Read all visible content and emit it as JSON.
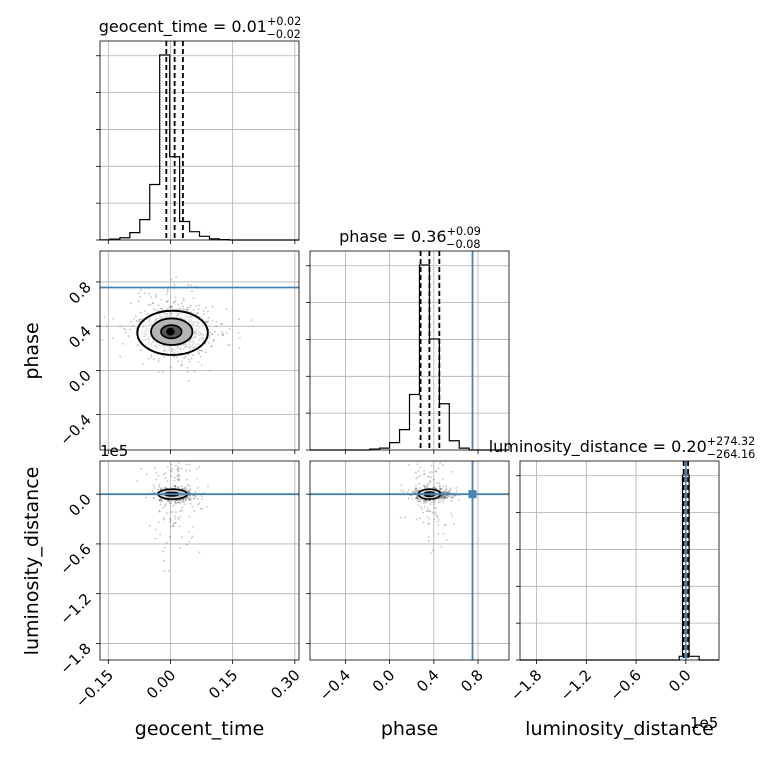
{
  "chart_data": {
    "type": "corner",
    "parameters": [
      "geocent_time",
      "phase",
      "luminosity_distance"
    ],
    "titles": [
      {
        "param": "geocent_time",
        "median": "0.01",
        "plus": "+0.02",
        "minus": "−0.02"
      },
      {
        "param": "phase",
        "median": "0.36",
        "plus": "+0.09",
        "minus": "−0.08"
      },
      {
        "param": "luminosity_distance",
        "median": "0.20",
        "plus": "+274.32",
        "minus": "−264.16"
      }
    ],
    "axis_labels": {
      "x": [
        "geocent_time",
        "phase",
        "luminosity_distance"
      ],
      "y": [
        "phase",
        "luminosity_distance"
      ]
    },
    "offset_labels": [
      "1e5",
      "1e5"
    ],
    "ticks": {
      "geocent_time": {
        "values": [
          -0.15,
          0.0,
          0.15,
          0.3
        ],
        "labels": [
          "−0.15",
          "0.00",
          "0.15",
          "0.30"
        ]
      },
      "phase": {
        "values": [
          -0.4,
          0.0,
          0.4,
          0.8
        ],
        "labels": [
          "−0.4",
          "0.0",
          "0.4",
          "0.8"
        ]
      },
      "luminosity_distance": {
        "values": [
          -1.8,
          -1.2,
          -0.6,
          0.0
        ],
        "labels": [
          "−1.8",
          "−1.2",
          "−0.6",
          "0.0"
        ]
      }
    },
    "ranges": {
      "geocent_time": [
        -0.17,
        0.31
      ],
      "phase": [
        -0.72,
        1.08
      ],
      "luminosity_distance": [
        -2.0,
        0.4
      ]
    },
    "quantiles": {
      "geocent_time": [
        -0.01,
        0.01,
        0.03
      ],
      "phase": [
        0.28,
        0.36,
        0.45
      ],
      "luminosity_distance": [
        -0.026,
        2e-05,
        0.027
      ]
    },
    "truth": {
      "phase": 0.75,
      "luminosity_distance": 0.0
    },
    "histograms": {
      "geocent_time": {
        "edges": [
          -0.17,
          -0.146,
          -0.122,
          -0.098,
          -0.074,
          -0.05,
          -0.026,
          -0.002,
          0.022,
          0.046,
          0.07,
          0.094,
          0.118,
          0.142,
          0.166,
          0.19,
          0.214,
          0.238,
          0.262,
          0.286,
          0.31
        ],
        "counts": [
          0.001,
          0.005,
          0.012,
          0.04,
          0.11,
          0.3,
          1.0,
          0.45,
          0.1,
          0.045,
          0.02,
          0.006,
          0.002,
          0,
          0,
          0,
          0,
          0,
          0,
          0
        ]
      },
      "phase": {
        "edges": [
          -0.72,
          -0.63,
          -0.54,
          -0.45,
          -0.36,
          -0.27,
          -0.18,
          -0.09,
          0.0,
          0.09,
          0.18,
          0.27,
          0.36,
          0.45,
          0.54,
          0.63,
          0.72,
          0.81,
          0.9,
          0.99,
          1.08
        ],
        "counts": [
          0,
          0,
          0,
          0,
          0,
          0,
          0.005,
          0.01,
          0.04,
          0.11,
          0.3,
          1.0,
          0.6,
          0.25,
          0.05,
          0.01,
          0,
          0,
          0,
          0
        ]
      },
      "luminosity_distance": {
        "edges": [
          -2.0,
          -1.88,
          -1.76,
          -1.64,
          -1.52,
          -1.4,
          -1.28,
          -1.16,
          -1.04,
          -0.92,
          -0.8,
          -0.68,
          -0.56,
          -0.44,
          -0.32,
          -0.2,
          -0.08,
          -0.04,
          0.04,
          0.16,
          0.28,
          0.4
        ],
        "counts": [
          0,
          0,
          0,
          0,
          0,
          0,
          0,
          0,
          0,
          0,
          0,
          0,
          0,
          0,
          0,
          0,
          0.02,
          1.0,
          0.02,
          0,
          0
        ]
      }
    },
    "grid": true,
    "colors": {
      "truth": "#4682b4",
      "line": "#000000",
      "grid": "#b0b0b0",
      "points": "#555555"
    }
  }
}
